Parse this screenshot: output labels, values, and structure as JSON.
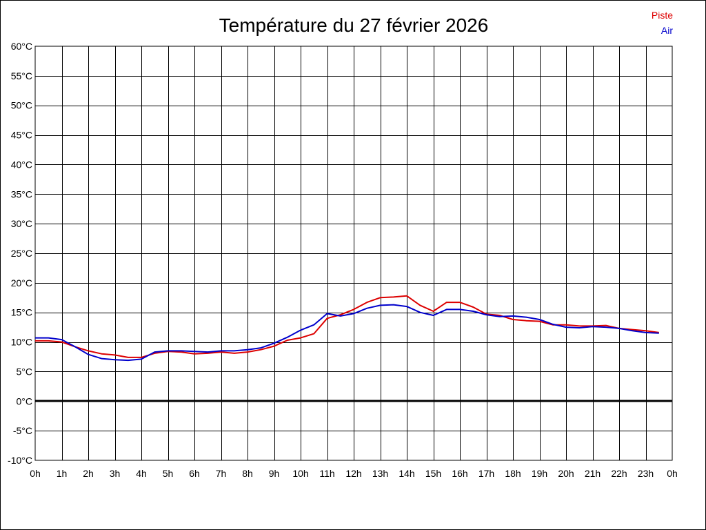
{
  "chart_data": {
    "type": "line",
    "title": "Température du 27 février 2026",
    "xlabel": "",
    "ylabel": "",
    "x_tick_labels": [
      "0h",
      "1h",
      "2h",
      "3h",
      "4h",
      "5h",
      "6h",
      "7h",
      "8h",
      "9h",
      "10h",
      "11h",
      "12h",
      "13h",
      "14h",
      "15h",
      "16h",
      "17h",
      "18h",
      "19h",
      "20h",
      "21h",
      "22h",
      "23h",
      "0h"
    ],
    "y_tick_labels": [
      "60°C",
      "55°C",
      "50°C",
      "45°C",
      "40°C",
      "35°C",
      "30°C",
      "25°C",
      "20°C",
      "15°C",
      "10°C",
      "5°C",
      "0°C",
      "-5°C",
      "-10°C"
    ],
    "xlim": [
      0,
      24
    ],
    "ylim": [
      -10,
      60
    ],
    "y_step": 5,
    "grid": true,
    "zero_line": true,
    "legend_position": "top-right",
    "x": [
      0,
      0.5,
      1,
      1.5,
      2,
      2.5,
      3,
      3.5,
      4,
      4.5,
      5,
      5.5,
      6,
      6.5,
      7,
      7.5,
      8,
      8.5,
      9,
      9.5,
      10,
      10.5,
      11,
      11.5,
      12,
      12.5,
      13,
      13.5,
      14,
      14.5,
      15,
      15.5,
      16,
      16.5,
      17,
      17.5,
      18,
      18.5,
      19,
      19.5,
      20,
      20.5,
      21,
      21.5,
      22,
      22.5,
      23,
      23.5
    ],
    "series": [
      {
        "name": "Piste",
        "color": "#dd0000",
        "values": [
          10.2,
          10.2,
          10.0,
          9.2,
          8.5,
          8.0,
          7.8,
          7.4,
          7.4,
          8.1,
          8.4,
          8.3,
          8.0,
          8.1,
          8.3,
          8.1,
          8.3,
          8.7,
          9.3,
          10.3,
          10.7,
          11.4,
          14.0,
          14.6,
          15.5,
          16.7,
          17.5,
          17.6,
          17.8,
          16.2,
          15.2,
          16.7,
          16.7,
          15.9,
          14.7,
          14.5,
          13.8,
          13.6,
          13.5,
          12.9,
          12.9,
          12.7,
          12.7,
          12.8,
          12.3,
          12.1,
          11.9,
          11.6
        ]
      },
      {
        "name": "Air",
        "color": "#0000cc",
        "values": [
          10.7,
          10.7,
          10.4,
          9.2,
          7.9,
          7.2,
          7.0,
          6.9,
          7.1,
          8.3,
          8.5,
          8.5,
          8.4,
          8.3,
          8.5,
          8.5,
          8.7,
          9.0,
          9.8,
          10.8,
          12.0,
          12.9,
          14.8,
          14.4,
          14.8,
          15.7,
          16.2,
          16.3,
          16.0,
          15.0,
          14.5,
          15.5,
          15.5,
          15.2,
          14.6,
          14.3,
          14.4,
          14.2,
          13.8,
          13.0,
          12.5,
          12.4,
          12.6,
          12.5,
          12.3,
          11.9,
          11.6,
          11.5
        ]
      }
    ]
  },
  "colors": {
    "grid": "#000000",
    "zero_line": "#000000",
    "background": "#ffffff"
  }
}
